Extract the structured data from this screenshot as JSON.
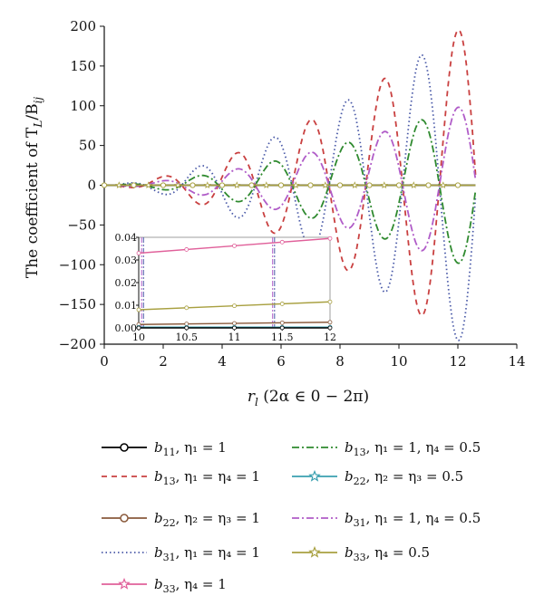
{
  "chart_data": {
    "type": "line",
    "title": "",
    "xlabel": "r_l (2α ∈ 0 − 2π)",
    "ylabel": "The coefficient of T_L/B_ij",
    "xlim": [
      0,
      14
    ],
    "ylim": [
      -200,
      200
    ],
    "x_ticks": [
      "0",
      "2",
      "4",
      "6",
      "8",
      "10",
      "12",
      "14"
    ],
    "y_ticks": [
      "200",
      "150",
      "100",
      "50",
      "0",
      "−50",
      "−100",
      "−150",
      "−200"
    ],
    "grid": false,
    "legend_position": "below",
    "series": [
      {
        "name": "b11, η1 = 1",
        "legend": {
          "base": "b",
          "sub": "11",
          "rest": ", η₁ = 1"
        },
        "color": "#000000",
        "dash": "",
        "marker": "circle",
        "kind": "flat",
        "amplitude": 0
      },
      {
        "name": "b13, η1 = η4 = 1",
        "legend": {
          "base": "b",
          "sub": "13",
          "rest": ", η₁ = η₄ = 1"
        },
        "color": "#c94040",
        "dash": "6,5",
        "marker": "none",
        "kind": "oscillating",
        "amplitude": 195
      },
      {
        "name": "b22, η2 = η3 = 1",
        "legend": {
          "base": "b",
          "sub": "22",
          "rest": ", η₂ = η₃ = 1"
        },
        "color": "#8a5a3c",
        "dash": "",
        "marker": "circle",
        "kind": "flat",
        "amplitude": 0
      },
      {
        "name": "b31, η1 = η4 = 1",
        "legend": {
          "base": "b",
          "sub": "31",
          "rest": ", η₁ = η₄ = 1"
        },
        "color": "#4a5aa8",
        "dash": "1.5,3",
        "marker": "none",
        "kind": "oscillating",
        "amplitude": -195
      },
      {
        "name": "b33, η4 = 1",
        "legend": {
          "base": "b",
          "sub": "33",
          "rest": ", η₄ = 1"
        },
        "color": "#e0609a",
        "dash": "",
        "marker": "star",
        "kind": "flat",
        "amplitude": 0
      },
      {
        "name": "b13, η1 = 1, η4 = 0.5",
        "legend": {
          "base": "b",
          "sub": "13",
          "rest": ", η₁ = 1, η₄ = 0.5"
        },
        "color": "#2f8a2f",
        "dash": "8,3,2,3",
        "marker": "none",
        "kind": "oscillating",
        "amplitude": -98
      },
      {
        "name": "b22, η2 = η3 = 0.5",
        "legend": {
          "base": "b",
          "sub": "22",
          "rest": ", η₂ = η₃ = 0.5"
        },
        "color": "#3aa0b0",
        "dash": "",
        "marker": "star",
        "kind": "flat",
        "amplitude": 0
      },
      {
        "name": "b31, η1 = 1, η4 = 0.5",
        "legend": {
          "base": "b",
          "sub": "31",
          "rest": ", η₁ = 1, η₄ = 0.5"
        },
        "color": "#b05cc8",
        "dash": "8,3,2,3",
        "marker": "none",
        "kind": "oscillating",
        "amplitude": 98
      },
      {
        "name": "b33, η4 = 0.5",
        "legend": {
          "base": "b",
          "sub": "33",
          "rest": ", η₄ = 0.5"
        },
        "color": "#a8a040",
        "dash": "",
        "marker": "star",
        "kind": "flat",
        "amplitude": 0
      }
    ],
    "inset": {
      "xlim": [
        10,
        12
      ],
      "ylim": [
        0,
        0.04
      ],
      "x_ticks": [
        "10",
        "10.5",
        "11",
        "11.5",
        "12"
      ],
      "y_ticks": [
        "0.04",
        "0.03",
        "0.02",
        "0.01",
        "0.00"
      ],
      "lines": [
        {
          "series": "b33, η4 = 1",
          "color": "#e0609a",
          "x": [
            10,
            12
          ],
          "y": [
            0.033,
            0.0395
          ]
        },
        {
          "series": "b33, η4 = 0.5",
          "color": "#a8a040",
          "x": [
            10,
            12
          ],
          "y": [
            0.008,
            0.0115
          ]
        },
        {
          "series": "b22, η2 = η3 = 1",
          "color": "#8a5a3c",
          "x": [
            10,
            12
          ],
          "y": [
            0.0015,
            0.0025
          ]
        },
        {
          "series": "b22, η2 = η3 = 0.5",
          "color": "#3aa0b0",
          "x": [
            10,
            12
          ],
          "y": [
            0.0003,
            0.0003
          ]
        },
        {
          "series": "b11, η1 = 1",
          "color": "#000000",
          "x": [
            10,
            12
          ],
          "y": [
            0.0,
            0.0
          ]
        }
      ]
    }
  }
}
